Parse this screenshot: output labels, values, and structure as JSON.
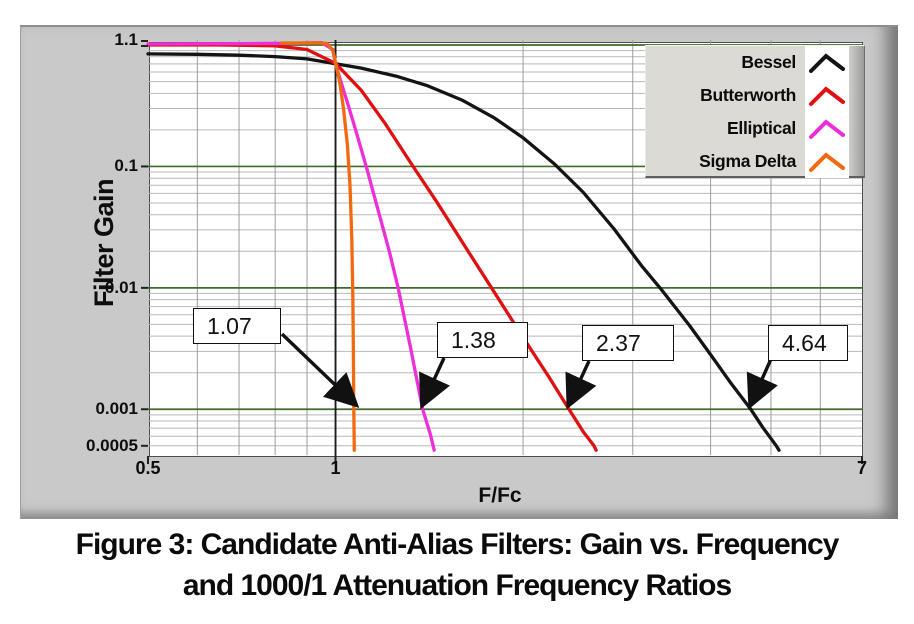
{
  "figure_caption": {
    "line1": "Figure 3: Candidate Anti-Alias Filters: Gain vs. Frequency",
    "line2": "and 1000/1 Attenuation Frequency Ratios"
  },
  "chart_data": {
    "type": "line",
    "title": "",
    "xlabel": "F/Fc",
    "ylabel": "Filter Gain",
    "x_scale": "log",
    "y_scale": "log",
    "xlim": [
      0.5,
      7
    ],
    "ylim": [
      0.0005,
      1.1
    ],
    "grid": "on",
    "colors": {
      "major_gridline": "#3c6b2b",
      "minor_gridline": "#b9b9b9",
      "vertical_gridline": "#9c9c9c",
      "cursor": "#1c1c1c",
      "plot_background": "#ffffff",
      "panel_background": "#c9c9c9"
    },
    "x_ticks": [
      {
        "value": 0.5,
        "label": "0.5"
      },
      {
        "value": 1,
        "label": "1"
      },
      {
        "value": 7,
        "label": "7"
      }
    ],
    "y_ticks": [
      {
        "value": 1.1,
        "label": "1.1"
      },
      {
        "value": 0.1,
        "label": "0.1"
      },
      {
        "value": 0.01,
        "label": "0.01"
      },
      {
        "value": 0.001,
        "label": "0.001"
      },
      {
        "value": 0.0005,
        "label": "0.0005"
      }
    ],
    "cursor_x": 1.0,
    "legend": {
      "position": "top-right",
      "entries": [
        {
          "name": "Bessel",
          "color": "#141414"
        },
        {
          "name": "Butterworth",
          "color": "#e01010"
        },
        {
          "name": "Elliptical",
          "color": "#ec2fd6"
        },
        {
          "name": "Sigma Delta",
          "color": "#f26a0f"
        }
      ]
    },
    "series": [
      {
        "name": "Bessel",
        "color": "#141414",
        "points": [
          [
            0.5,
            0.845
          ],
          [
            0.6,
            0.838
          ],
          [
            0.7,
            0.825
          ],
          [
            0.8,
            0.803
          ],
          [
            0.9,
            0.768
          ],
          [
            1.0,
            0.7
          ],
          [
            1.1,
            0.645
          ],
          [
            1.25,
            0.555
          ],
          [
            1.4,
            0.465
          ],
          [
            1.6,
            0.35
          ],
          [
            1.8,
            0.25
          ],
          [
            2.0,
            0.172
          ],
          [
            2.25,
            0.104
          ],
          [
            2.5,
            0.061
          ],
          [
            2.8,
            0.0305
          ],
          [
            3.1,
            0.0152
          ],
          [
            3.35,
            0.0094
          ],
          [
            3.7,
            0.0049
          ],
          [
            4.0,
            0.00282
          ],
          [
            4.3,
            0.00167
          ],
          [
            4.64,
            0.001
          ],
          [
            4.85,
            0.00071
          ],
          [
            5.1,
            0.0005
          ],
          [
            5.15,
            0.00046
          ]
        ]
      },
      {
        "name": "Butterworth",
        "color": "#e01010",
        "points": [
          [
            0.5,
            1.0
          ],
          [
            0.65,
            1.0
          ],
          [
            0.8,
            0.986
          ],
          [
            0.9,
            0.918
          ],
          [
            1.0,
            0.707
          ],
          [
            1.1,
            0.423
          ],
          [
            1.2,
            0.227
          ],
          [
            1.33,
            0.101
          ],
          [
            1.45,
            0.052
          ],
          [
            1.6,
            0.0235
          ],
          [
            1.78,
            0.01
          ],
          [
            2.0,
            0.0039
          ],
          [
            2.2,
            0.00185
          ],
          [
            2.37,
            0.001
          ],
          [
            2.5,
            0.00065
          ],
          [
            2.6,
            0.0005
          ],
          [
            2.62,
            0.00046
          ]
        ]
      },
      {
        "name": "Elliptical",
        "color": "#ec2fd6",
        "points": [
          [
            0.5,
            1.02
          ],
          [
            0.7,
            1.027
          ],
          [
            0.85,
            1.033
          ],
          [
            0.95,
            1.045
          ],
          [
            0.99,
            0.92
          ],
          [
            1.0,
            0.7
          ],
          [
            1.02,
            0.5
          ],
          [
            1.05,
            0.31
          ],
          [
            1.08,
            0.19
          ],
          [
            1.12,
            0.1
          ],
          [
            1.17,
            0.044
          ],
          [
            1.22,
            0.02
          ],
          [
            1.26,
            0.01
          ],
          [
            1.32,
            0.0032
          ],
          [
            1.38,
            0.001
          ],
          [
            1.42,
            0.00062
          ],
          [
            1.44,
            0.00046
          ]
        ]
      },
      {
        "name": "Sigma Delta",
        "color": "#f26a0f",
        "points": [
          [
            0.82,
            1.04
          ],
          [
            0.93,
            1.042
          ],
          [
            0.97,
            1.03
          ],
          [
            0.99,
            0.9
          ],
          [
            1.0,
            0.72
          ],
          [
            1.015,
            0.5
          ],
          [
            1.03,
            0.3
          ],
          [
            1.045,
            0.15
          ],
          [
            1.055,
            0.07
          ],
          [
            1.062,
            0.025
          ],
          [
            1.066,
            0.009
          ],
          [
            1.068,
            0.0035
          ],
          [
            1.07,
            0.001
          ],
          [
            1.072,
            0.00046
          ]
        ]
      }
    ],
    "annotations": [
      {
        "label": "1.07",
        "x": 1.07,
        "y": 0.001
      },
      {
        "label": "1.38",
        "x": 1.38,
        "y": 0.001
      },
      {
        "label": "2.37",
        "x": 2.37,
        "y": 0.001
      },
      {
        "label": "4.64",
        "x": 4.64,
        "y": 0.001
      }
    ]
  }
}
